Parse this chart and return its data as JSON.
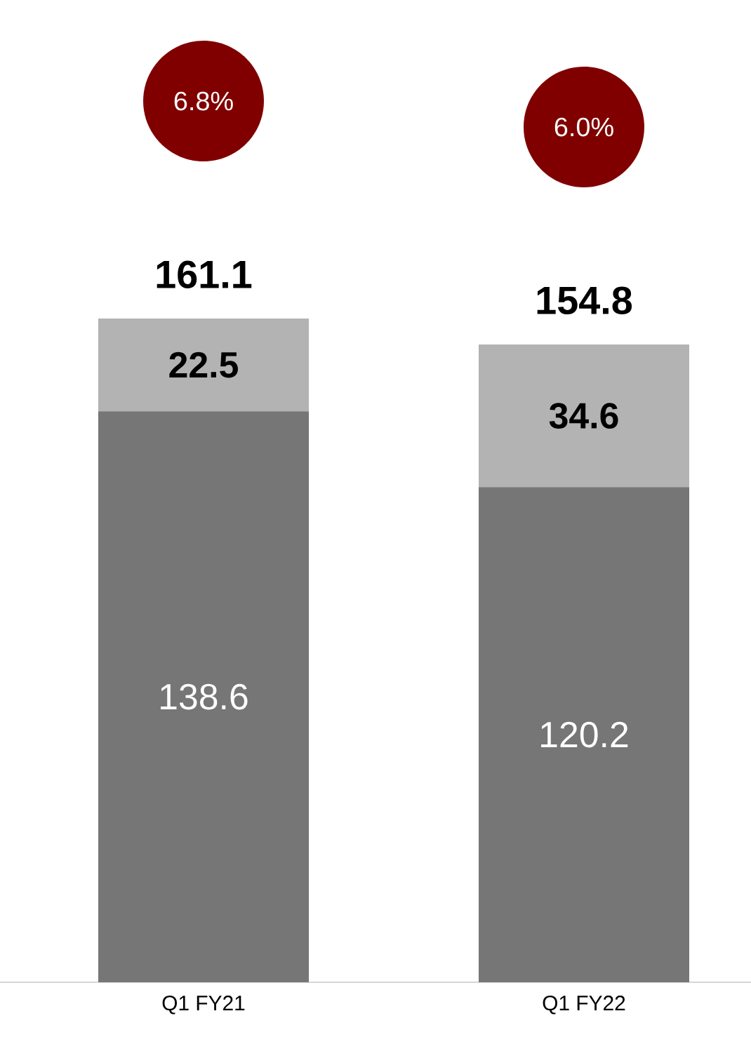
{
  "chart_data": {
    "type": "bar",
    "stacked": true,
    "data_labels": true,
    "categories": [
      "Q1 FY21",
      "Q1 FY22"
    ],
    "series": [
      {
        "color": "#767676",
        "values": [
          138.6,
          120.2
        ]
      },
      {
        "color": "#b3b3b3",
        "values": [
          22.5,
          34.6
        ]
      }
    ],
    "totals": [
      "161.1",
      "154.8"
    ],
    "annotations": [
      "6.8%",
      "6.0%"
    ]
  }
}
